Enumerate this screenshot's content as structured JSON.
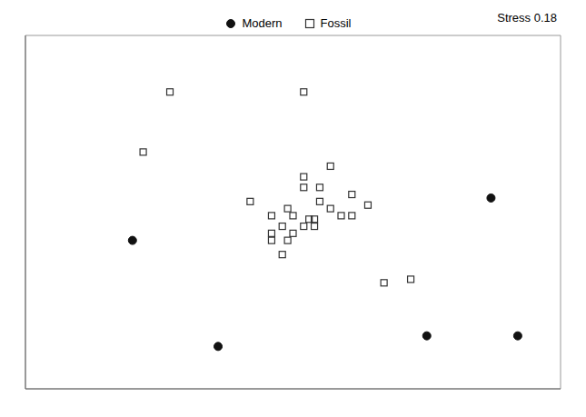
{
  "chart_data": {
    "type": "scatter",
    "annotation": "Stress 0.18",
    "xlim": [
      0,
      1
    ],
    "ylim": [
      0,
      1
    ],
    "tick_labels": false,
    "legend": "top",
    "series": [
      {
        "name": "Modern",
        "color": "#111111",
        "marker": "circle",
        "x": [
          0.2,
          0.36,
          0.87,
          0.92,
          0.75
        ],
        "values": [
          0.42,
          0.12,
          0.54,
          0.15,
          0.15
        ]
      },
      {
        "name": "Fossil",
        "color": "#333333",
        "marker": "open_square",
        "x": [
          0.27,
          0.52,
          0.22,
          0.52,
          0.57,
          0.61,
          0.42,
          0.49,
          0.52,
          0.55,
          0.55,
          0.5,
          0.53,
          0.5,
          0.54,
          0.57,
          0.59,
          0.46,
          0.49,
          0.52,
          0.54,
          0.61,
          0.64,
          0.46,
          0.48,
          0.46,
          0.48,
          0.67,
          0.72
        ],
        "values": [
          0.84,
          0.84,
          0.67,
          0.6,
          0.63,
          0.55,
          0.53,
          0.51,
          0.57,
          0.53,
          0.57,
          0.49,
          0.48,
          0.44,
          0.46,
          0.51,
          0.49,
          0.44,
          0.42,
          0.46,
          0.48,
          0.49,
          0.52,
          0.49,
          0.46,
          0.42,
          0.38,
          0.3,
          0.31
        ]
      }
    ]
  }
}
